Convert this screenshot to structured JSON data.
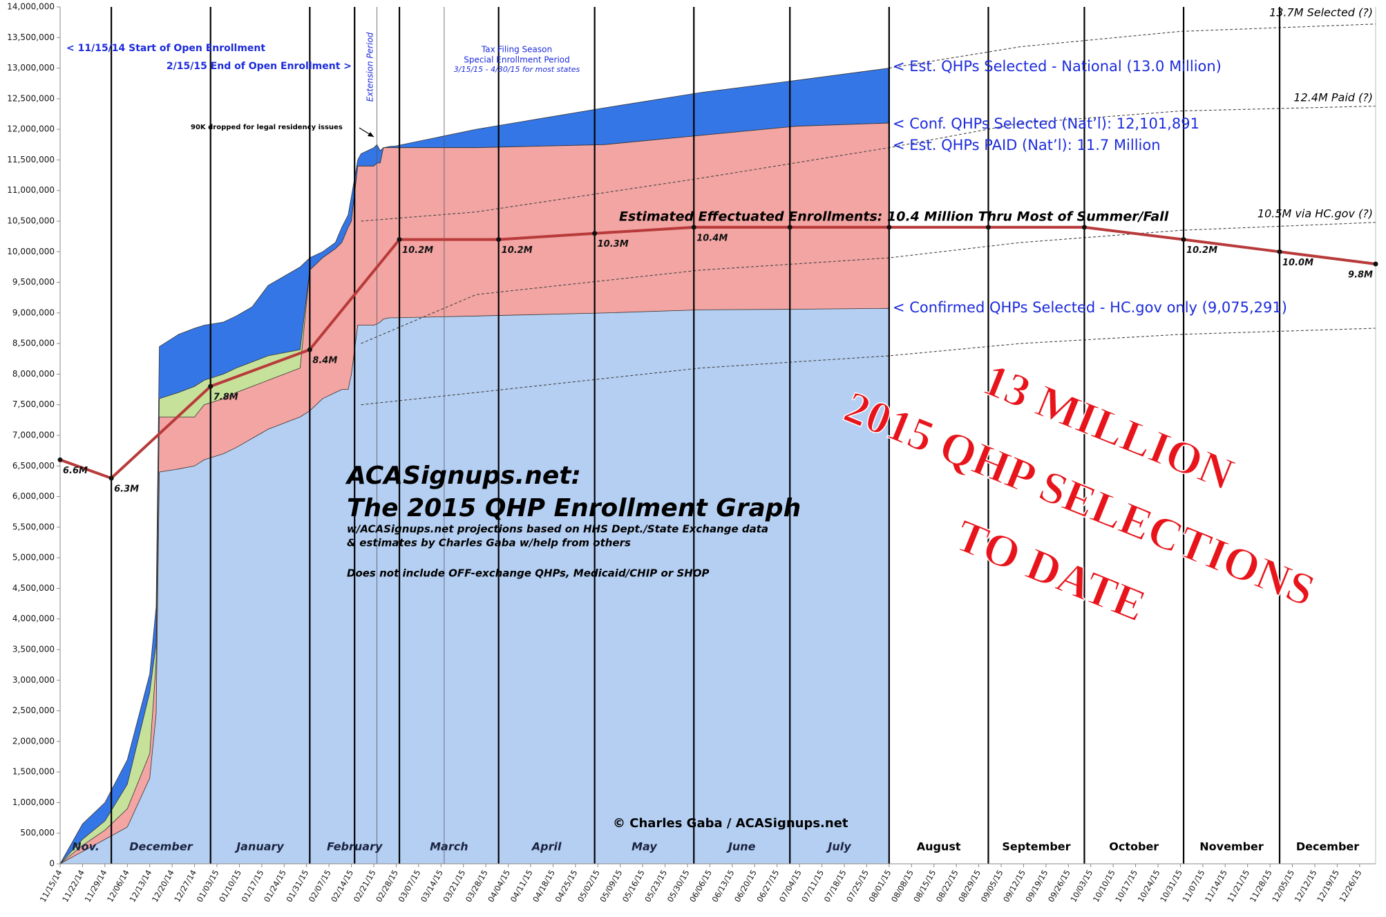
{
  "chart_data": {
    "type": "area",
    "title": "ACASignups.net:",
    "subtitle": "The 2015 QHP Enrollment Graph",
    "notes": [
      "w/ACASignups.net projections based on HHS Dept./State Exchange data",
      "& estimates by Charles Gaba w/help from others",
      "Does not include OFF-exchange QHPs, Medicaid/CHIP or SHOP"
    ],
    "credit": "© Charles Gaba / ACASignups.net",
    "stamp": [
      "13 MILLION",
      "2015 QHP SELECTIONS",
      "TO DATE"
    ],
    "annotations": [
      "< 11/15/14 Start of Open Enrollment",
      "2/15/15 End of Open Enrollment >",
      "Extension Period",
      "Tax Filing Season",
      "Special Enrollment Period",
      "3/15/15 - 4/30/15 for most states",
      "90K dropped for legal residency issues",
      "< Est. QHPs Selected - National (13.0 Million)",
      "< Conf. QHPs Selected (Nat’l): 12,101,891",
      "< Est. QHPs PAID (Nat’l): 11.7 Million",
      "Estimated Effectuated Enrollments: 10.4 Million Thru Most of Summer/Fall",
      "< Confirmed QHPs Selected - HC.gov only (9,075,291)",
      "13.7M Selected (?)",
      "12.4M Paid (?)",
      "10.5M via HC.gov (?)"
    ],
    "x": [
      0,
      7,
      14,
      21,
      28,
      30,
      31,
      37,
      42,
      45,
      51,
      55,
      60,
      65,
      75,
      78,
      82,
      86,
      88,
      90,
      91,
      93,
      94,
      98,
      99,
      100,
      101,
      103,
      105,
      130,
      170,
      200,
      230,
      259
    ],
    "series": [
      {
        "color": "#3476e6",
        "values": [
          0,
          650000,
          1000000,
          1700000,
          3100000,
          4200000,
          8450000,
          8650000,
          8750000,
          8800000,
          8850000,
          8950000,
          9100000,
          9450000,
          9750000,
          9900000,
          10000000,
          10150000,
          10400000,
          10600000,
          10900000,
          11500000,
          11600000,
          11700000,
          11750000,
          11650000,
          11700000,
          11720000,
          11730000,
          12000000,
          12350000,
          12600000,
          12800000,
          13000000
        ]
      },
      {
        "color": "#c6e29a",
        "values": [
          0,
          400000,
          700000,
          1300000,
          2800000,
          3600000,
          7600000,
          7700000,
          7800000,
          7900000,
          8000000,
          8100000,
          8200000,
          8300000,
          8400000,
          9700000,
          9900000,
          10050000,
          10150000,
          10400000,
          10500000,
          11400000,
          11400000,
          11400000,
          11450000,
          11450000,
          11700000,
          11700000,
          11700000,
          11700000,
          11750000,
          11900000,
          12050000,
          12101891
        ]
      },
      {
        "color": "#f2a5a2",
        "values": [
          0,
          300000,
          550000,
          900000,
          1800000,
          3300000,
          7300000,
          7300000,
          7300000,
          7500000,
          7600000,
          7700000,
          7800000,
          7900000,
          8100000,
          9700000,
          9900000,
          10050000,
          10150000,
          10400000,
          10500000,
          11400000,
          11400000,
          11400000,
          11450000,
          11450000,
          11700000,
          11700000,
          11700000,
          11700000,
          11750000,
          11900000,
          12050000,
          12101891
        ]
      },
      {
        "color": "#b5cff2",
        "values": [
          0,
          200000,
          400000,
          600000,
          1400000,
          2450000,
          6400000,
          6450000,
          6500000,
          6600000,
          6700000,
          6800000,
          6950000,
          7100000,
          7300000,
          7400000,
          7600000,
          7700000,
          7750000,
          7750000,
          8000000,
          8800000,
          8800000,
          8800000,
          8820000,
          8850000,
          8900000,
          8920000,
          8920000,
          8950000,
          9000000,
          9050000,
          9060000,
          9075291
        ]
      }
    ],
    "projections": [
      {
        "x": [
          259,
          300,
          350,
          411
        ],
        "values": [
          13000000,
          13350000,
          13600000,
          13720000
        ]
      },
      {
        "x": [
          94,
          130,
          200,
          259,
          300,
          350,
          411
        ],
        "values": [
          10500000,
          10650000,
          11200000,
          11700000,
          12100000,
          12300000,
          12380000
        ]
      },
      {
        "x": [
          94,
          130,
          200,
          259,
          300,
          350,
          411
        ],
        "values": [
          8500000,
          9300000,
          9700000,
          9900000,
          10150000,
          10350000,
          10480000
        ]
      },
      {
        "x": [
          94,
          130,
          200,
          259,
          300,
          350,
          411
        ],
        "values": [
          7500000,
          7700000,
          8100000,
          8300000,
          8500000,
          8650000,
          8750000
        ]
      }
    ],
    "effectuated": {
      "color": "#b83a3a",
      "x": [
        0,
        16,
        47,
        78,
        106,
        137,
        167,
        198,
        228,
        259,
        290,
        320,
        351,
        381,
        411
      ],
      "values": [
        6600000,
        6300000,
        7800000,
        8400000,
        10200000,
        10200000,
        10300000,
        10400000,
        10400000,
        10400000,
        10400000,
        10400000,
        10200000,
        10000000,
        9800000
      ],
      "value_labels": [
        "6.6M",
        "6.3M",
        "7.8M",
        "8.4M",
        "10.2M",
        "10.2M",
        "10.3M",
        "10.4M",
        null,
        null,
        null,
        null,
        "10.2M",
        "10.0M",
        "9.8M"
      ]
    },
    "months": [
      "Nov.",
      "December",
      "January",
      "February",
      "March",
      "April",
      "May",
      "June",
      "July",
      "August",
      "September",
      "October",
      "November",
      "December"
    ],
    "month_lines": [
      16,
      47,
      78,
      106,
      137,
      167,
      198,
      228,
      259,
      290,
      320,
      351,
      381
    ],
    "event_lines": [
      92
    ],
    "minor_lines": [
      99,
      120
    ],
    "xlim": [
      0,
      411
    ],
    "ylim": [
      0,
      14000000
    ],
    "xticks": [
      {
        "value": 0,
        "label": "11/15/14"
      },
      {
        "value": 7,
        "label": "11/22/14"
      },
      {
        "value": 14,
        "label": "11/29/14"
      },
      {
        "value": 21,
        "label": "12/06/14"
      },
      {
        "value": 28,
        "label": "12/13/14"
      },
      {
        "value": 35,
        "label": "12/20/14"
      },
      {
        "value": 42,
        "label": "12/27/14"
      },
      {
        "value": 49,
        "label": "01/03/15"
      },
      {
        "value": 56,
        "label": "01/10/15"
      },
      {
        "value": 63,
        "label": "01/17/15"
      },
      {
        "value": 70,
        "label": "01/24/15"
      },
      {
        "value": 77,
        "label": "01/31/15"
      },
      {
        "value": 84,
        "label": "02/07/15"
      },
      {
        "value": 91,
        "label": "02/14/15"
      },
      {
        "value": 98,
        "label": "02/21/15"
      },
      {
        "value": 105,
        "label": "02/28/15"
      },
      {
        "value": 112,
        "label": "03/07/15"
      },
      {
        "value": 119,
        "label": "03/14/15"
      },
      {
        "value": 126,
        "label": "03/21/15"
      },
      {
        "value": 133,
        "label": "03/28/15"
      },
      {
        "value": 140,
        "label": "04/04/15"
      },
      {
        "value": 147,
        "label": "04/11/15"
      },
      {
        "value": 154,
        "label": "04/18/15"
      },
      {
        "value": 161,
        "label": "04/25/15"
      },
      {
        "value": 168,
        "label": "05/02/15"
      },
      {
        "value": 175,
        "label": "05/09/15"
      },
      {
        "value": 182,
        "label": "05/16/15"
      },
      {
        "value": 189,
        "label": "05/23/15"
      },
      {
        "value": 196,
        "label": "05/30/15"
      },
      {
        "value": 203,
        "label": "06/06/15"
      },
      {
        "value": 210,
        "label": "06/13/15"
      },
      {
        "value": 217,
        "label": "06/20/15"
      },
      {
        "value": 224,
        "label": "06/27/15"
      },
      {
        "value": 231,
        "label": "07/04/15"
      },
      {
        "value": 238,
        "label": "07/11/15"
      },
      {
        "value": 245,
        "label": "07/18/15"
      },
      {
        "value": 252,
        "label": "07/25/15"
      },
      {
        "value": 259,
        "label": "08/01/15"
      },
      {
        "value": 266,
        "label": "08/08/15"
      },
      {
        "value": 273,
        "label": "08/15/15"
      },
      {
        "value": 280,
        "label": "08/22/15"
      },
      {
        "value": 287,
        "label": "08/29/15"
      },
      {
        "value": 294,
        "label": "09/05/15"
      },
      {
        "value": 301,
        "label": "09/12/15"
      },
      {
        "value": 308,
        "label": "09/19/15"
      },
      {
        "value": 315,
        "label": "09/26/15"
      },
      {
        "value": 322,
        "label": "10/03/15"
      },
      {
        "value": 329,
        "label": "10/10/15"
      },
      {
        "value": 336,
        "label": "10/17/15"
      },
      {
        "value": 343,
        "label": "10/24/15"
      },
      {
        "value": 350,
        "label": "10/31/15"
      },
      {
        "value": 357,
        "label": "11/07/15"
      },
      {
        "value": 364,
        "label": "11/14/15"
      },
      {
        "value": 371,
        "label": "11/21/15"
      },
      {
        "value": 378,
        "label": "11/28/15"
      },
      {
        "value": 385,
        "label": "12/05/15"
      },
      {
        "value": 392,
        "label": "12/12/15"
      },
      {
        "value": 399,
        "label": "12/19/15"
      },
      {
        "value": 406,
        "label": "12/26/15"
      }
    ],
    "yticks": [
      0,
      {
        "value": 500000,
        "label": "500,000"
      },
      {
        "value": 1000000,
        "label": "1,000,000"
      },
      {
        "value": 1500000,
        "label": "1,500,000"
      },
      {
        "value": 2000000,
        "label": "2,000,000"
      },
      {
        "value": 2500000,
        "label": "2,500,000"
      },
      {
        "value": 3000000,
        "label": "3,000,000"
      },
      {
        "value": 3500000,
        "label": "3,500,000"
      },
      {
        "value": 4000000,
        "label": "4,000,000"
      },
      {
        "value": 4500000,
        "label": "4,500,000"
      },
      {
        "value": 5000000,
        "label": "5,000,000"
      },
      {
        "value": 5500000,
        "label": "5,500,000"
      },
      {
        "value": 6000000,
        "label": "6,000,000"
      },
      {
        "value": 6500000,
        "label": "6,500,000"
      },
      {
        "value": 7000000,
        "label": "7,000,000"
      },
      {
        "value": 7500000,
        "label": "7,500,000"
      },
      {
        "value": 8000000,
        "label": "8,000,000"
      },
      {
        "value": 8500000,
        "label": "8,500,000"
      },
      {
        "value": 9000000,
        "label": "9,000,000"
      },
      {
        "value": 9500000,
        "label": "9,500,000"
      },
      {
        "value": 10000000,
        "label": "10,000,000"
      },
      {
        "value": 10500000,
        "label": "10,500,000"
      },
      {
        "value": 11000000,
        "label": "11,000,000"
      },
      {
        "value": 11500000,
        "label": "11,500,000"
      },
      {
        "value": 12000000,
        "label": "12,000,000"
      },
      {
        "value": 12500000,
        "label": "12,500,000"
      },
      {
        "value": 13000000,
        "label": "13,000,000"
      },
      {
        "value": 13500000,
        "label": "13,500,000"
      },
      {
        "value": 14000000,
        "label": "14,000,000"
      }
    ]
  }
}
